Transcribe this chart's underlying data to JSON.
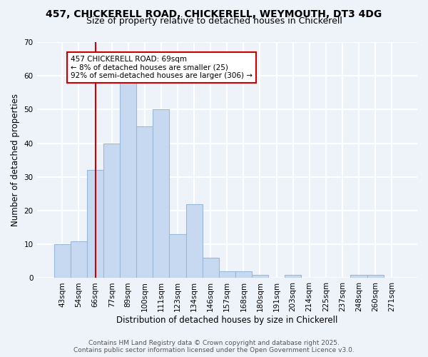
{
  "title_line1": "457, CHICKERELL ROAD, CHICKERELL, WEYMOUTH, DT3 4DG",
  "title_line2": "Size of property relative to detached houses in Chickerell",
  "xlabel": "Distribution of detached houses by size in Chickerell",
  "ylabel": "Number of detached properties",
  "categories": [
    "43sqm",
    "54sqm",
    "66sqm",
    "77sqm",
    "89sqm",
    "100sqm",
    "111sqm",
    "123sqm",
    "134sqm",
    "146sqm",
    "157sqm",
    "168sqm",
    "180sqm",
    "191sqm",
    "203sqm",
    "214sqm",
    "225sqm",
    "237sqm",
    "248sqm",
    "260sqm",
    "271sqm"
  ],
  "values": [
    10,
    11,
    32,
    40,
    58,
    45,
    50,
    13,
    22,
    6,
    2,
    2,
    1,
    0,
    1,
    0,
    0,
    0,
    1,
    1,
    0
  ],
  "bar_color": "#c6d9f0",
  "bar_edge_color": "#9ab8d8",
  "vline_x_index": 2,
  "vline_color": "#cc0000",
  "annotation_text": "457 CHICKERELL ROAD: 69sqm\n← 8% of detached houses are smaller (25)\n92% of semi-detached houses are larger (306) →",
  "annotation_box_facecolor": "#ffffff",
  "annotation_box_edgecolor": "#cc0000",
  "ylim": [
    0,
    70
  ],
  "yticks": [
    0,
    10,
    20,
    30,
    40,
    50,
    60,
    70
  ],
  "footer_line1": "Contains HM Land Registry data © Crown copyright and database right 2025.",
  "footer_line2": "Contains public sector information licensed under the Open Government Licence v3.0.",
  "background_color": "#eef2f9",
  "plot_bg_color": "#eef2f9",
  "grid_color": "#ffffff",
  "title_fontsize": 10,
  "subtitle_fontsize": 9,
  "axis_label_fontsize": 8.5,
  "tick_fontsize": 7.5,
  "annotation_fontsize": 7.5,
  "footer_fontsize": 6.5
}
